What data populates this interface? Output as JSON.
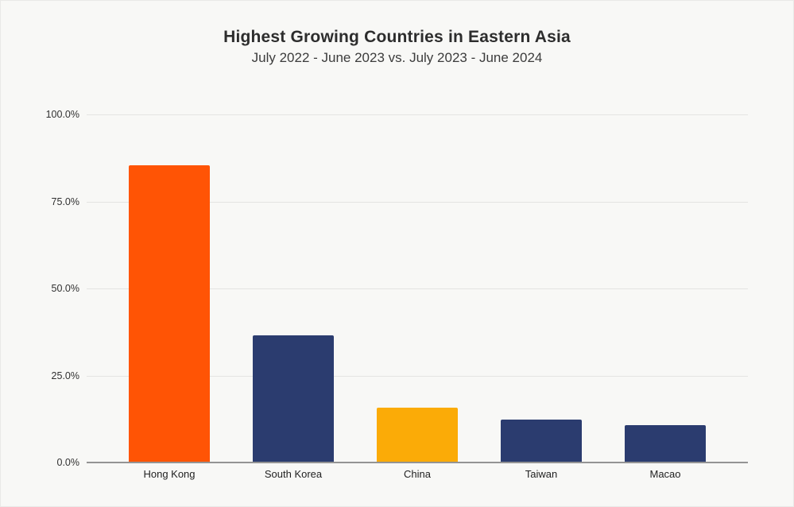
{
  "chart": {
    "title": "Highest Growing Countries in Eastern Asia",
    "subtitle": "July 2022 - June 2023 vs. July 2023 - June 2024"
  },
  "chart_data": {
    "type": "bar",
    "title": "Highest Growing Countries in Eastern Asia",
    "subtitle": "July 2022 - June 2023 vs. July 2023 - June 2024",
    "categories": [
      "Hong Kong",
      "South Korea",
      "China",
      "Taiwan",
      "Macao"
    ],
    "values": [
      85.5,
      36.5,
      15.8,
      12.3,
      10.7
    ],
    "bar_colors": [
      "#FF5405",
      "#2B3C6F",
      "#FBAB07",
      "#2B3C6F",
      "#2B3C6F"
    ],
    "xlabel": "",
    "ylabel": "",
    "ylim": [
      0,
      100
    ],
    "ytick_values": [
      100,
      75,
      50,
      25,
      0
    ],
    "ytick_labels": [
      "100.0%",
      "75.0%",
      "50.0%",
      "25.0%",
      "0.0%"
    ],
    "grid": "horizontal",
    "legend": "none",
    "background_color": "#F8F8F6",
    "gridline_color": "#E4E4E2",
    "axis_line_color": "#949494",
    "title_color": "#2D2D2D",
    "subtitle_color": "#3C3C3C",
    "tick_text_color": "#303030",
    "category_text_color": "#222222"
  }
}
